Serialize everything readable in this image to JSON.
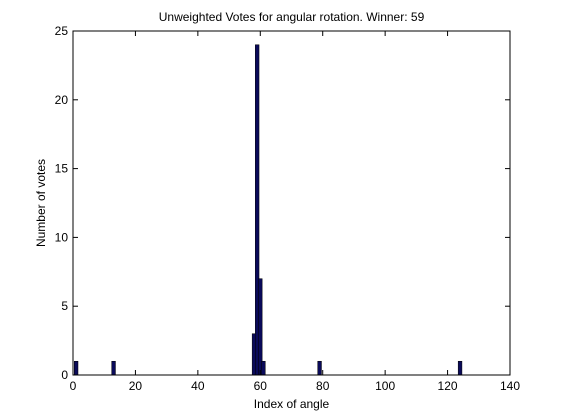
{
  "chart_data": {
    "type": "bar",
    "title": "Unweighted Votes for angular rotation. Winner: 59",
    "xlabel": "Index of angle",
    "ylabel": "Number of votes",
    "xlim": [
      0,
      140
    ],
    "ylim": [
      0,
      25
    ],
    "xticks": [
      0,
      20,
      40,
      60,
      80,
      100,
      120,
      140
    ],
    "yticks": [
      0,
      5,
      10,
      15,
      20,
      25
    ],
    "grid": false,
    "bar_color": "#0a0a5a",
    "x": [
      1,
      13,
      58,
      59,
      60,
      61,
      79,
      124
    ],
    "values": [
      1,
      1,
      3,
      24,
      7,
      1,
      1,
      1
    ]
  }
}
